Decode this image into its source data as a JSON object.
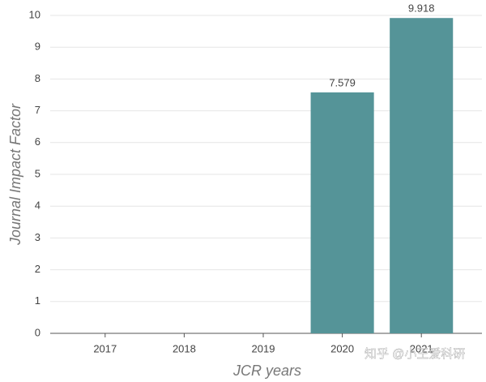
{
  "chart_data": {
    "type": "bar",
    "x_label": "JCR years",
    "y_label": "Journal Impact Factor",
    "categories": [
      "2017",
      "2018",
      "2019",
      "2020",
      "2021"
    ],
    "values": [
      null,
      null,
      null,
      7.579,
      9.918
    ],
    "color": "#559498",
    "ylim": [
      0,
      10
    ],
    "yticks": [
      0,
      1,
      2,
      3,
      4,
      5,
      6,
      7,
      8,
      9,
      10
    ],
    "grid": true,
    "watermark": "知乎 @小王爱科研"
  }
}
